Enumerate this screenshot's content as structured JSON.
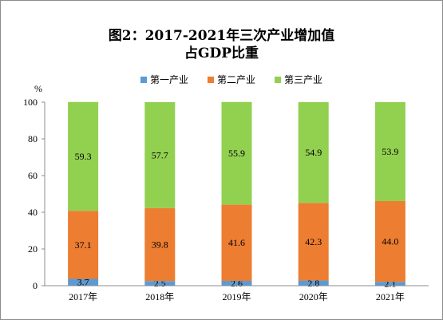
{
  "chart_data": {
    "type": "bar",
    "stacked": true,
    "title": [
      "图2：2017-2021年三次产业增加值",
      "占GDP比重"
    ],
    "ylabel": "%",
    "xlabel": "",
    "ylim": [
      0,
      100
    ],
    "yticks": [
      0,
      20,
      40,
      60,
      80,
      100
    ],
    "categories": [
      "2017年",
      "2018年",
      "2019年",
      "2020年",
      "2021年"
    ],
    "series": [
      {
        "name": "第一产业",
        "color": "#5b9bd5",
        "values": [
          3.7,
          2.5,
          2.6,
          2.8,
          2.1
        ]
      },
      {
        "name": "第二产业",
        "color": "#ed7d31",
        "values": [
          37.1,
          39.8,
          41.6,
          42.3,
          44.0
        ]
      },
      {
        "name": "第三产业",
        "color": "#92d050",
        "values": [
          59.3,
          57.7,
          55.9,
          54.9,
          53.9
        ]
      }
    ],
    "legend_position": "top",
    "grid": false,
    "label_decimals": 1
  }
}
